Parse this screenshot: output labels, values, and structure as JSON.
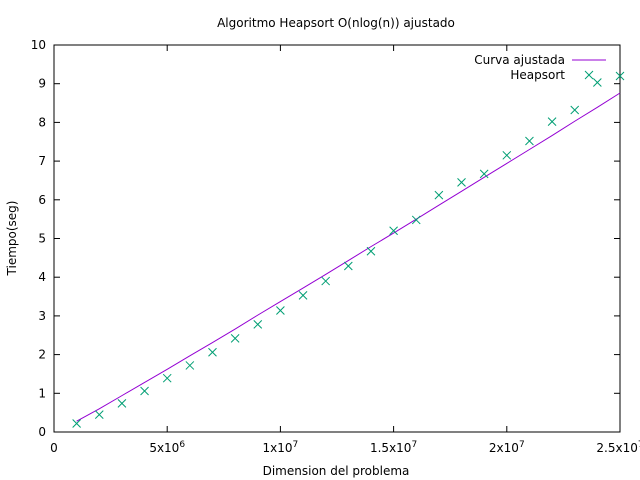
{
  "chart_data": {
    "type": "scatter",
    "title": "Algoritmo Heapsort O(nlog(n)) ajustado",
    "xlabel": "Dimension del problema",
    "ylabel": "Tiempo(seg)",
    "xlim": [
      0,
      25000000
    ],
    "ylim": [
      0,
      10
    ],
    "x_ticks": [
      {
        "value": 0,
        "label": "0"
      },
      {
        "value": 5000000,
        "label": "5x10",
        "exp": "6"
      },
      {
        "value": 10000000,
        "label": "1x10",
        "exp": "7"
      },
      {
        "value": 15000000,
        "label": "1.5x10",
        "exp": "7"
      },
      {
        "value": 20000000,
        "label": "2x10",
        "exp": "7"
      },
      {
        "value": 25000000,
        "label": "2.5x10",
        "exp": "7"
      }
    ],
    "y_ticks": [
      {
        "value": 0,
        "label": "0"
      },
      {
        "value": 1,
        "label": "1"
      },
      {
        "value": 2,
        "label": "2"
      },
      {
        "value": 3,
        "label": "3"
      },
      {
        "value": 4,
        "label": "4"
      },
      {
        "value": 5,
        "label": "5"
      },
      {
        "value": 6,
        "label": "6"
      },
      {
        "value": 7,
        "label": "7"
      },
      {
        "value": 8,
        "label": "8"
      },
      {
        "value": 9,
        "label": "9"
      },
      {
        "value": 10,
        "label": "10"
      }
    ],
    "grid": false,
    "legend": "top-right",
    "series": [
      {
        "name": "Curva ajustada",
        "style": "line",
        "color": "#9400d3",
        "x": [
          1000000,
          2000000,
          3000000,
          4000000,
          5000000,
          6000000,
          7000000,
          8000000,
          9000000,
          10000000,
          11000000,
          12000000,
          13000000,
          14000000,
          15000000,
          16000000,
          17000000,
          18000000,
          19000000,
          20000000,
          21000000,
          22000000,
          23000000,
          24000000,
          25000000
        ],
        "y": [
          0.28,
          0.6,
          0.94,
          1.28,
          1.62,
          1.97,
          2.31,
          2.66,
          3.02,
          3.37,
          3.72,
          4.07,
          4.43,
          4.79,
          5.14,
          5.5,
          5.86,
          6.22,
          6.58,
          6.94,
          7.3,
          7.66,
          8.03,
          8.39,
          8.76
        ]
      },
      {
        "name": "Heapsort",
        "style": "points",
        "marker": "x",
        "color": "#009e73",
        "x": [
          1000000,
          2000000,
          3000000,
          4000000,
          5000000,
          6000000,
          7000000,
          8000000,
          9000000,
          10000000,
          11000000,
          12000000,
          13000000,
          14000000,
          15000000,
          16000000,
          17000000,
          18000000,
          19000000,
          20000000,
          21000000,
          22000000,
          23000000,
          24000000,
          25000000
        ],
        "y": [
          0.22,
          0.45,
          0.74,
          1.06,
          1.39,
          1.72,
          2.06,
          2.42,
          2.78,
          3.14,
          3.53,
          3.9,
          4.29,
          4.67,
          5.2,
          5.48,
          6.12,
          6.45,
          6.67,
          7.15,
          7.52,
          8.02,
          8.32,
          9.03,
          9.2
        ]
      }
    ]
  }
}
